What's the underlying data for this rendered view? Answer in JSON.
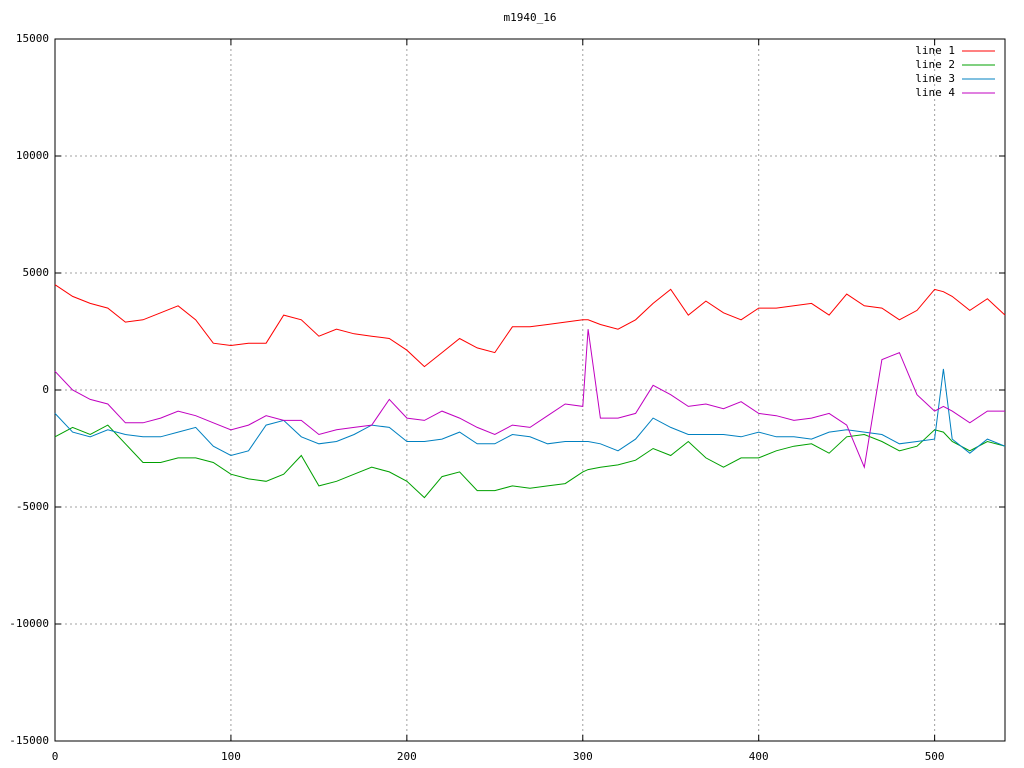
{
  "chart_data": {
    "type": "line",
    "title": "m1940_16",
    "x": [
      0,
      10,
      20,
      30,
      40,
      50,
      60,
      70,
      80,
      90,
      100,
      110,
      120,
      130,
      140,
      150,
      160,
      170,
      180,
      190,
      200,
      210,
      220,
      230,
      240,
      250,
      260,
      270,
      280,
      290,
      300,
      303,
      310,
      320,
      330,
      340,
      350,
      360,
      370,
      380,
      390,
      400,
      410,
      420,
      430,
      440,
      450,
      460,
      470,
      480,
      490,
      500,
      505,
      510,
      520,
      530,
      540
    ],
    "series": [
      {
        "name": "line 1",
        "color": "#ff0000",
        "values": [
          4500,
          4000,
          3700,
          3500,
          2900,
          3000,
          3300,
          3600,
          3000,
          2000,
          1900,
          2000,
          2000,
          3200,
          3000,
          2300,
          2600,
          2400,
          2300,
          2200,
          1700,
          1000,
          1600,
          2200,
          1800,
          1600,
          2700,
          2700,
          2800,
          2900,
          3000,
          3000,
          2800,
          2600,
          3000,
          3700,
          4300,
          3200,
          3800,
          3300,
          3000,
          3500,
          3500,
          3600,
          3700,
          3200,
          4100,
          3600,
          3500,
          3000,
          3400,
          4300,
          4200,
          4000,
          3400,
          3900,
          3200
        ]
      },
      {
        "name": "line 2",
        "color": "#00a000",
        "values": [
          -2000,
          -1600,
          -1900,
          -1500,
          -2300,
          -3100,
          -3100,
          -2900,
          -2900,
          -3100,
          -3600,
          -3800,
          -3900,
          -3600,
          -2800,
          -4100,
          -3900,
          -3600,
          -3300,
          -3500,
          -3900,
          -4600,
          -3700,
          -3500,
          -4300,
          -4300,
          -4100,
          -4200,
          -4100,
          -4000,
          -3500,
          -3400,
          -3300,
          -3200,
          -3000,
          -2500,
          -2800,
          -2200,
          -2900,
          -3300,
          -2900,
          -2900,
          -2600,
          -2400,
          -2300,
          -2700,
          -2000,
          -1900,
          -2200,
          -2600,
          -2400,
          -1700,
          -1800,
          -2200,
          -2600,
          -2200,
          -2400
        ]
      },
      {
        "name": "line 3",
        "color": "#0080c0",
        "values": [
          -1000,
          -1800,
          -2000,
          -1700,
          -1900,
          -2000,
          -2000,
          -1800,
          -1600,
          -2400,
          -2800,
          -2600,
          -1500,
          -1300,
          -2000,
          -2300,
          -2200,
          -1900,
          -1500,
          -1600,
          -2200,
          -2200,
          -2100,
          -1800,
          -2300,
          -2300,
          -1900,
          -2000,
          -2300,
          -2200,
          -2200,
          -2200,
          -2300,
          -2600,
          -2100,
          -1200,
          -1600,
          -1900,
          -1900,
          -1900,
          -2000,
          -1800,
          -2000,
          -2000,
          -2100,
          -1800,
          -1700,
          -1800,
          -1900,
          -2300,
          -2200,
          -2100,
          900,
          -2100,
          -2700,
          -2100,
          -2400
        ]
      },
      {
        "name": "line 4",
        "color": "#c000c0",
        "values": [
          800,
          0,
          -400,
          -600,
          -1400,
          -1400,
          -1200,
          -900,
          -1100,
          -1400,
          -1700,
          -1500,
          -1100,
          -1300,
          -1300,
          -1900,
          -1700,
          -1600,
          -1500,
          -400,
          -1200,
          -1300,
          -900,
          -1200,
          -1600,
          -1900,
          -1500,
          -1600,
          -1100,
          -600,
          -700,
          2600,
          -1200,
          -1200,
          -1000,
          200,
          -200,
          -700,
          -600,
          -800,
          -500,
          -1000,
          -1100,
          -1300,
          -1200,
          -1000,
          -1500,
          -3300,
          1300,
          1600,
          -200,
          -900,
          -700,
          -900,
          -1400,
          -900,
          -900
        ]
      }
    ],
    "xlim": [
      0,
      540
    ],
    "ylim": [
      -15000,
      15000
    ],
    "xticks": [
      0,
      100,
      200,
      300,
      400,
      500
    ],
    "yticks": [
      -15000,
      -10000,
      -5000,
      0,
      5000,
      10000,
      15000
    ],
    "grid": true,
    "legend": "top-right"
  }
}
